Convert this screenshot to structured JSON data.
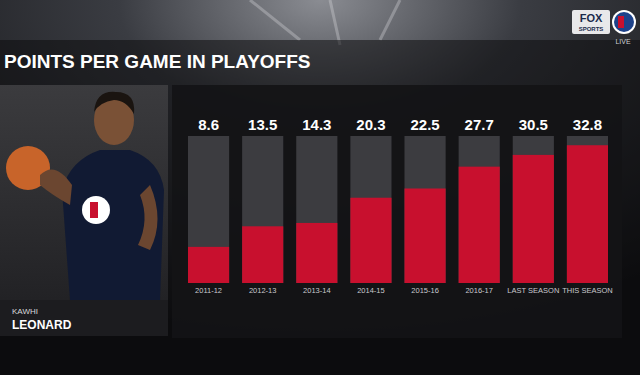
{
  "chart_data": {
    "type": "bar",
    "title": "POINTS PER GAME IN PLAYOFFS",
    "categories": [
      "2011-12",
      "2012-13",
      "2013-14",
      "2014-15",
      "2015-16",
      "2016-17",
      "LAST SEASON",
      "THIS SEASON"
    ],
    "values": [
      8.6,
      13.5,
      14.3,
      20.3,
      22.5,
      27.7,
      30.5,
      32.8
    ],
    "color": "#c8102e",
    "ylim": [
      0,
      35
    ],
    "data_labels": true,
    "tick_labels": "x"
  },
  "player": {
    "first_name": "KAWHI",
    "last_name": "LEONARD"
  },
  "broadcast": {
    "network": [
      "FOX",
      "SPORTS"
    ],
    "status": "LIVE"
  }
}
